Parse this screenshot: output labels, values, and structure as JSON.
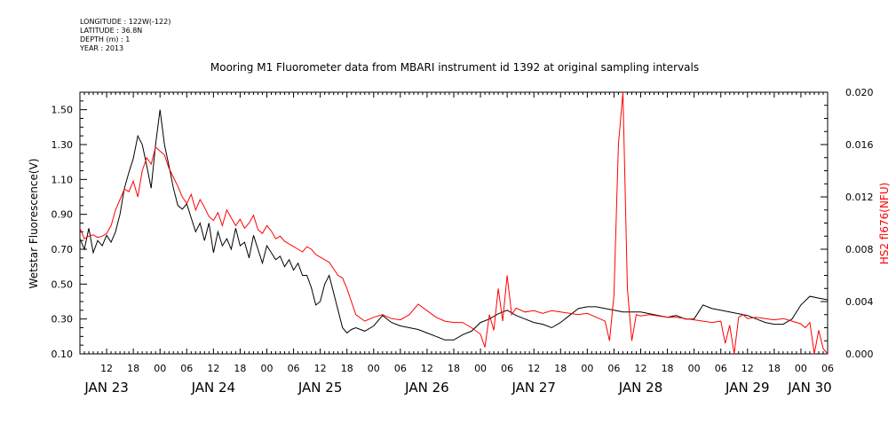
{
  "meta": {
    "longitude": "LONGITUDE : 122W(-122)",
    "latitude": "LATITUDE : 36.8N",
    "depth": "DEPTH (m) : 1",
    "year": "YEAR : 2013"
  },
  "chart_data": {
    "type": "line",
    "title": "Mooring M1 Fluorometer data from MBARI instrument id 1392 at original sampling intervals",
    "ylabel": "Wetstar Fluorescence(V)",
    "ylabel_right": "HS2 fl676(NFU)",
    "ylim": [
      0.1,
      1.6
    ],
    "ylim_right": [
      0.0,
      0.02
    ],
    "xlim_hours": [
      6,
      174
    ],
    "y_ticks": [
      "0.10",
      "0.30",
      "0.50",
      "0.70",
      "0.90",
      "1.10",
      "1.30",
      "1.50"
    ],
    "y_right_ticks": [
      "0.000",
      "0.004",
      "0.008",
      "0.012",
      "0.016",
      "0.020"
    ],
    "x_hour_ticks": [
      {
        "t": 12,
        "label": "12"
      },
      {
        "t": 18,
        "label": "18"
      },
      {
        "t": 24,
        "label": "00"
      },
      {
        "t": 30,
        "label": "06"
      },
      {
        "t": 36,
        "label": "12"
      },
      {
        "t": 42,
        "label": "18"
      },
      {
        "t": 48,
        "label": "00"
      },
      {
        "t": 54,
        "label": "06"
      },
      {
        "t": 60,
        "label": "12"
      },
      {
        "t": 66,
        "label": "18"
      },
      {
        "t": 72,
        "label": "00"
      },
      {
        "t": 78,
        "label": "06"
      },
      {
        "t": 84,
        "label": "12"
      },
      {
        "t": 90,
        "label": "18"
      },
      {
        "t": 96,
        "label": "00"
      },
      {
        "t": 102,
        "label": "06"
      },
      {
        "t": 108,
        "label": "12"
      },
      {
        "t": 114,
        "label": "18"
      },
      {
        "t": 120,
        "label": "00"
      },
      {
        "t": 126,
        "label": "06"
      },
      {
        "t": 132,
        "label": "12"
      },
      {
        "t": 138,
        "label": "18"
      },
      {
        "t": 144,
        "label": "00"
      },
      {
        "t": 150,
        "label": "06"
      },
      {
        "t": 156,
        "label": "12"
      },
      {
        "t": 162,
        "label": "18"
      },
      {
        "t": 168,
        "label": "00"
      },
      {
        "t": 174,
        "label": "06"
      }
    ],
    "x_day_labels": [
      {
        "t": 12,
        "label": "JAN 23"
      },
      {
        "t": 36,
        "label": "JAN 24"
      },
      {
        "t": 60,
        "label": "JAN 25"
      },
      {
        "t": 84,
        "label": "JAN 26"
      },
      {
        "t": 108,
        "label": "JAN 27"
      },
      {
        "t": 132,
        "label": "JAN 28"
      },
      {
        "t": 156,
        "label": "JAN 29"
      },
      {
        "t": 170,
        "label": "JAN 30"
      }
    ],
    "series": [
      {
        "axis": "left",
        "color": "#000000",
        "x": [
          6,
          7,
          8,
          9,
          10,
          11,
          12,
          13,
          14,
          15,
          16,
          17,
          18,
          19,
          20,
          21,
          22,
          23,
          24,
          25,
          26,
          27,
          28,
          29,
          30,
          31,
          32,
          33,
          34,
          35,
          36,
          37,
          38,
          39,
          40,
          41,
          42,
          43,
          44,
          45,
          46,
          47,
          48,
          49,
          50,
          51,
          52,
          53,
          54,
          55,
          56,
          57,
          58,
          59,
          60,
          61,
          62,
          63,
          64,
          65,
          66,
          67,
          68,
          70,
          72,
          74,
          76,
          78,
          80,
          82,
          84,
          86,
          88,
          90,
          92,
          94,
          96,
          98,
          100,
          102,
          104,
          106,
          108,
          110,
          112,
          114,
          116,
          118,
          120,
          122,
          124,
          126,
          128,
          130,
          132,
          134,
          136,
          138,
          140,
          142,
          144,
          146,
          148,
          150,
          152,
          154,
          156,
          158,
          160,
          162,
          164,
          166,
          168,
          170,
          172,
          174
        ],
        "y": [
          0.76,
          0.7,
          0.82,
          0.68,
          0.75,
          0.72,
          0.78,
          0.74,
          0.8,
          0.9,
          1.05,
          1.14,
          1.22,
          1.35,
          1.3,
          1.18,
          1.05,
          1.3,
          1.5,
          1.3,
          1.18,
          1.05,
          0.95,
          0.93,
          0.96,
          0.88,
          0.8,
          0.85,
          0.75,
          0.85,
          0.68,
          0.8,
          0.72,
          0.76,
          0.7,
          0.82,
          0.72,
          0.74,
          0.65,
          0.78,
          0.7,
          0.62,
          0.72,
          0.68,
          0.64,
          0.66,
          0.6,
          0.64,
          0.58,
          0.62,
          0.55,
          0.55,
          0.48,
          0.38,
          0.4,
          0.5,
          0.55,
          0.45,
          0.35,
          0.25,
          0.22,
          0.24,
          0.25,
          0.23,
          0.26,
          0.32,
          0.28,
          0.26,
          0.25,
          0.24,
          0.22,
          0.2,
          0.18,
          0.18,
          0.21,
          0.23,
          0.28,
          0.3,
          0.33,
          0.35,
          0.32,
          0.3,
          0.28,
          0.27,
          0.25,
          0.28,
          0.32,
          0.36,
          0.37,
          0.37,
          0.36,
          0.35,
          0.34,
          0.34,
          0.34,
          0.33,
          0.32,
          0.31,
          0.32,
          0.3,
          0.3,
          0.38,
          0.36,
          0.35,
          0.34,
          0.33,
          0.32,
          0.3,
          0.28,
          0.27,
          0.27,
          0.3,
          0.38,
          0.43,
          0.42,
          0.41
        ]
      },
      {
        "axis": "right",
        "color": "#ff0000",
        "x": [
          6,
          7,
          8,
          9,
          10,
          11,
          12,
          13,
          14,
          15,
          16,
          17,
          18,
          19,
          20,
          21,
          22,
          23,
          24,
          25,
          26,
          27,
          28,
          29,
          30,
          31,
          32,
          33,
          34,
          35,
          36,
          37,
          38,
          39,
          40,
          41,
          42,
          43,
          44,
          45,
          46,
          47,
          48,
          49,
          50,
          51,
          52,
          53,
          54,
          55,
          56,
          57,
          58,
          59,
          60,
          61,
          62,
          63,
          64,
          65,
          66,
          67,
          68,
          70,
          72,
          74,
          76,
          78,
          80,
          82,
          84,
          86,
          88,
          90,
          92,
          94,
          96,
          97,
          98,
          99,
          100,
          101,
          102,
          103,
          104,
          106,
          108,
          110,
          112,
          114,
          116,
          118,
          120,
          122,
          124,
          125,
          126,
          127,
          128,
          129,
          130,
          131,
          132,
          134,
          136,
          138,
          140,
          142,
          144,
          146,
          148,
          150,
          151,
          152,
          153,
          154,
          155,
          156,
          158,
          160,
          162,
          164,
          166,
          168,
          169,
          170,
          171,
          172,
          173,
          174
        ],
        "y": [
          0.0096,
          0.0088,
          0.009,
          0.0091,
          0.0089,
          0.009,
          0.0092,
          0.0098,
          0.011,
          0.0118,
          0.0126,
          0.0124,
          0.0132,
          0.012,
          0.014,
          0.015,
          0.0145,
          0.0158,
          0.0155,
          0.0152,
          0.0142,
          0.0135,
          0.0128,
          0.012,
          0.0115,
          0.0122,
          0.011,
          0.0118,
          0.0112,
          0.0105,
          0.0102,
          0.0108,
          0.0098,
          0.011,
          0.0104,
          0.0098,
          0.0103,
          0.0096,
          0.01,
          0.0106,
          0.0095,
          0.0092,
          0.0098,
          0.0094,
          0.0088,
          0.009,
          0.0086,
          0.0084,
          0.0082,
          0.008,
          0.0078,
          0.0082,
          0.008,
          0.0076,
          0.0074,
          0.0072,
          0.007,
          0.0065,
          0.006,
          0.0058,
          0.005,
          0.004,
          0.003,
          0.0025,
          0.0028,
          0.003,
          0.0027,
          0.0026,
          0.003,
          0.0038,
          0.0033,
          0.0028,
          0.0025,
          0.0024,
          0.0024,
          0.002,
          0.0015,
          0.0005,
          0.003,
          0.0018,
          0.005,
          0.0025,
          0.006,
          0.003,
          0.0035,
          0.0032,
          0.0033,
          0.0031,
          0.0033,
          0.0032,
          0.0031,
          0.003,
          0.0031,
          0.0028,
          0.0025,
          0.001,
          0.0045,
          0.016,
          0.02,
          0.005,
          0.001,
          0.003,
          0.0029,
          0.003,
          0.0029,
          0.0028,
          0.0028,
          0.0027,
          0.0026,
          0.0025,
          0.0024,
          0.0025,
          0.0008,
          0.0022,
          0.0,
          0.0028,
          0.003,
          0.0027,
          0.0028,
          0.0027,
          0.0026,
          0.0027,
          0.0025,
          0.0023,
          0.002,
          0.0024,
          0.0,
          0.0018,
          0.0004,
          0.0
        ]
      }
    ]
  }
}
